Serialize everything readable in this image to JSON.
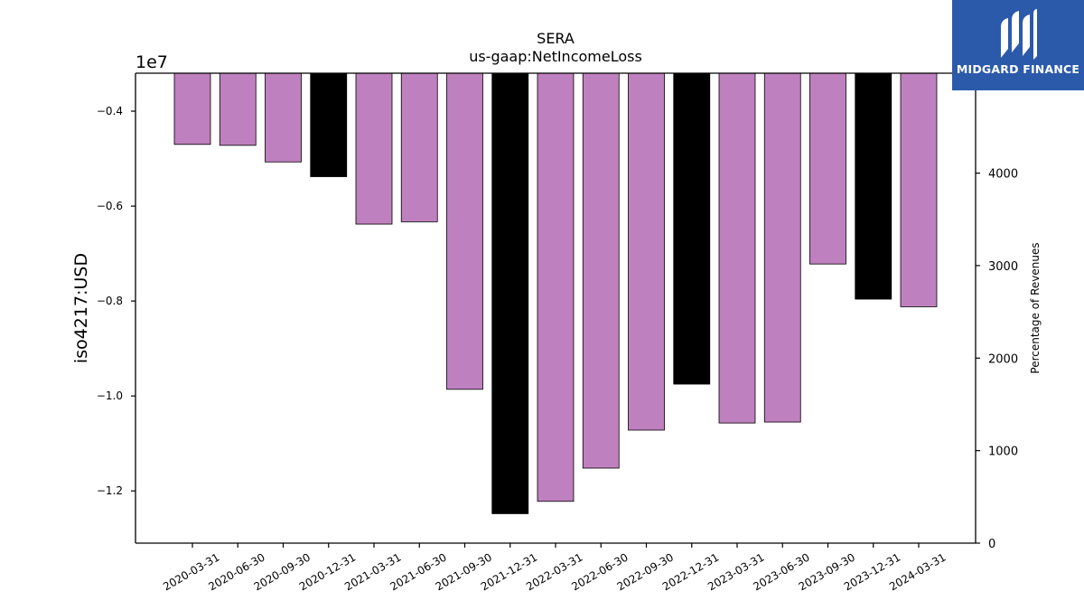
{
  "chart_data": {
    "type": "bar",
    "title": "SERA",
    "subtitle": "us-gaap:NetIncomeLoss",
    "ylabel": "iso4217:USD",
    "y_multiplier_label": "1e7",
    "y2label": "Percentage of Revenues",
    "categories": [
      "2020-03-31",
      "2020-06-30",
      "2020-09-30",
      "2020-12-31",
      "2021-03-31",
      "2021-06-30",
      "2021-09-30",
      "2021-12-31",
      "2022-03-31",
      "2022-06-30",
      "2022-09-30",
      "2022-12-31",
      "2023-03-31",
      "2023-06-30",
      "2023-09-30",
      "2023-12-31",
      "2024-03-31"
    ],
    "values": [
      -4700000.0,
      -4720000.0,
      -5070000.0,
      -5380000.0,
      -6380000.0,
      -6330000.0,
      -9860000.0,
      -12480000.0,
      -12220000.0,
      -11520000.0,
      -10720000.0,
      -9750000.0,
      -10570000.0,
      -10550000.0,
      -7220000.0,
      -7960000.0,
      -8120000.0
    ],
    "bar_colors": [
      "#bf80bf",
      "#bf80bf",
      "#bf80bf",
      "#000000",
      "#bf80bf",
      "#bf80bf",
      "#bf80bf",
      "#000000",
      "#bf80bf",
      "#bf80bf",
      "#bf80bf",
      "#000000",
      "#bf80bf",
      "#bf80bf",
      "#bf80bf",
      "#000000",
      "#bf80bf"
    ],
    "ylim": [
      -13100000.0,
      -3200000.0
    ],
    "yticks": [
      -12000000.0,
      -10000000.0,
      -8000000.0,
      -6000000.0,
      -4000000.0
    ],
    "ytick_labels": [
      "−1.2",
      "−1.0",
      "−0.8",
      "−0.6",
      "−0.4"
    ],
    "y2lim": [
      0,
      5080
    ],
    "y2ticks": [
      0,
      1000,
      2000,
      3000,
      4000
    ],
    "y2tick_labels": [
      "0",
      "1000",
      "2000",
      "3000",
      "4000"
    ],
    "grid": false,
    "legend": "none"
  },
  "logo": {
    "text": "MIDGARD FINANCE",
    "icon": "midgard-logo-icon",
    "color": "#2b5aab"
  }
}
